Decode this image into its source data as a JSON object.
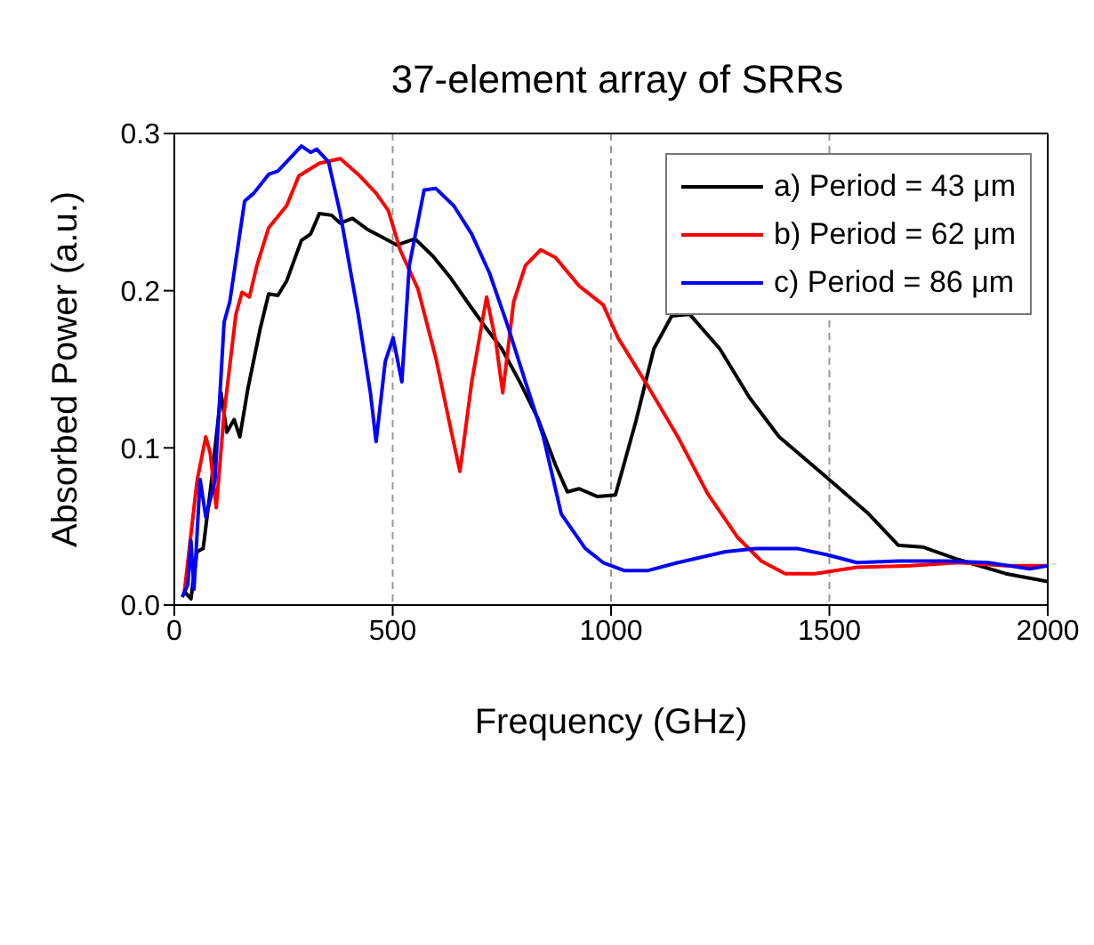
{
  "chart_data": {
    "type": "line",
    "title": "37-element array of SRRs",
    "xlabel": "Frequency (GHz)",
    "ylabel": "Absorbed Power (a.u.)",
    "xlim": [
      0,
      2000
    ],
    "xticks": [
      0,
      500,
      1000,
      1500,
      2000
    ],
    "ylim": [
      0,
      0.3
    ],
    "yticks": [
      {
        "value": 0,
        "label": "0.0"
      },
      0.1,
      0.2,
      0.3
    ],
    "grid": "x",
    "legend": "top right",
    "line_style": "solid",
    "marker": "none",
    "series": [
      {
        "name": "a) Period = 43 μm",
        "color": "#000000",
        "x": [
          25,
          38,
          52,
          66,
          86,
          107,
          120,
          137,
          150,
          168,
          196,
          216,
          237,
          257,
          291,
          312,
          332,
          360,
          380,
          408,
          442,
          476,
          510,
          551,
          592,
          633,
          668,
          709,
          750,
          791,
          832,
          873,
          900,
          927,
          969,
          1010,
          1057,
          1098,
          1139,
          1180,
          1249,
          1317,
          1385,
          1495,
          1590,
          1658,
          1713,
          1795,
          1904,
          2000
        ],
        "values": [
          0.008,
          0.004,
          0.034,
          0.036,
          0.081,
          0.135,
          0.11,
          0.118,
          0.107,
          0.137,
          0.175,
          0.198,
          0.197,
          0.206,
          0.232,
          0.236,
          0.249,
          0.248,
          0.243,
          0.246,
          0.239,
          0.234,
          0.229,
          0.233,
          0.222,
          0.208,
          0.194,
          0.178,
          0.163,
          0.142,
          0.119,
          0.089,
          0.072,
          0.074,
          0.069,
          0.07,
          0.117,
          0.163,
          0.184,
          0.185,
          0.163,
          0.132,
          0.107,
          0.081,
          0.058,
          0.038,
          0.037,
          0.029,
          0.02,
          0.015
        ]
      },
      {
        "name": "b) Period = 62 μm",
        "color": "#ff0000",
        "x": [
          22,
          52,
          72,
          82,
          96,
          114,
          141,
          155,
          172,
          189,
          216,
          257,
          285,
          332,
          380,
          421,
          462,
          490,
          517,
          558,
          599,
          633,
          654,
          681,
          715,
          736,
          752,
          777,
          804,
          839,
          873,
          927,
          982,
          1016,
          1085,
          1153,
          1221,
          1290,
          1344,
          1399,
          1467,
          1563,
          1686,
          1795,
          1904,
          2000
        ],
        "values": [
          0.006,
          0.079,
          0.107,
          0.097,
          0.062,
          0.122,
          0.185,
          0.199,
          0.196,
          0.216,
          0.24,
          0.254,
          0.273,
          0.281,
          0.284,
          0.274,
          0.262,
          0.251,
          0.226,
          0.201,
          0.157,
          0.112,
          0.085,
          0.142,
          0.196,
          0.168,
          0.135,
          0.193,
          0.216,
          0.226,
          0.221,
          0.203,
          0.191,
          0.17,
          0.139,
          0.107,
          0.071,
          0.043,
          0.028,
          0.02,
          0.02,
          0.024,
          0.025,
          0.027,
          0.025,
          0.025
        ]
      },
      {
        "name": "c) Period = 86 μm",
        "color": "#0000ff",
        "x": [
          18,
          31,
          38,
          45,
          59,
          72,
          93,
          114,
          127,
          161,
          182,
          216,
          237,
          291,
          312,
          326,
          353,
          380,
          421,
          449,
          462,
          483,
          501,
          521,
          538,
          572,
          599,
          640,
          681,
          722,
          763,
          804,
          845,
          886,
          941,
          982,
          1030,
          1085,
          1153,
          1262,
          1331,
          1426,
          1495,
          1563,
          1658,
          1768,
          1863,
          1959,
          2000
        ],
        "values": [
          0.005,
          0.013,
          0.041,
          0.01,
          0.08,
          0.056,
          0.079,
          0.18,
          0.193,
          0.257,
          0.262,
          0.274,
          0.276,
          0.292,
          0.288,
          0.29,
          0.282,
          0.249,
          0.185,
          0.135,
          0.104,
          0.155,
          0.17,
          0.142,
          0.216,
          0.264,
          0.265,
          0.254,
          0.236,
          0.211,
          0.178,
          0.142,
          0.107,
          0.058,
          0.036,
          0.027,
          0.022,
          0.022,
          0.027,
          0.034,
          0.036,
          0.036,
          0.032,
          0.027,
          0.028,
          0.028,
          0.027,
          0.023,
          0.025
        ]
      }
    ]
  }
}
